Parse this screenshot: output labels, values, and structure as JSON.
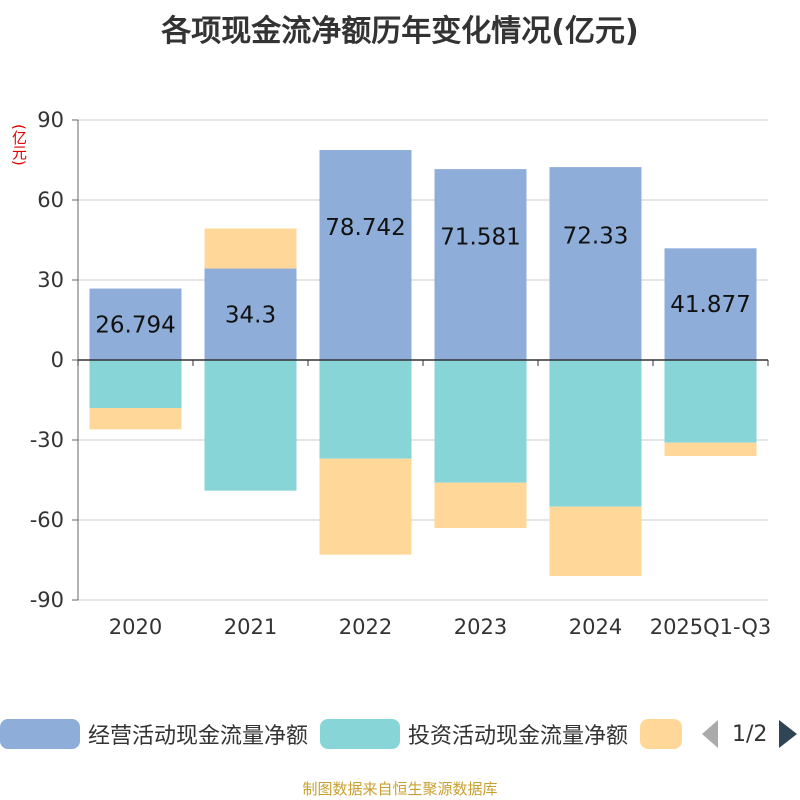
{
  "title": "各项现金流净额历年变化情况(亿元)",
  "unit_label": "(亿元)",
  "source_note": "制图数据来自恒生聚源数据库",
  "legend_page": "1/2",
  "chart_data": {
    "type": "bar",
    "stacked": true,
    "title": "各项现金流净额历年变化情况(亿元)",
    "ylabel": "(亿元)",
    "ylim": [
      -90,
      90
    ],
    "yticks": [
      90,
      60,
      30,
      0,
      -30,
      -60,
      -90
    ],
    "grid": true,
    "legend_position": "bottom",
    "categories": [
      "2020",
      "2021",
      "2022",
      "2023",
      "2024",
      "2025Q1-Q3"
    ],
    "series": [
      {
        "name": "经营活动现金流量净额",
        "color": "#8eadd9",
        "values": [
          26.794,
          34.3,
          78.742,
          71.581,
          72.33,
          41.877
        ],
        "labels": [
          "26.794",
          "34.3",
          "78.742",
          "71.581",
          "72.33",
          "41.877"
        ]
      },
      {
        "name": "投资活动现金流量净额",
        "color": "#87d5d6",
        "values": [
          -18,
          -49,
          -37,
          -46,
          -55,
          -31
        ]
      },
      {
        "name": "",
        "color": "#ffd899",
        "values": [
          -8,
          15,
          -36,
          -17,
          -26,
          -5
        ]
      }
    ]
  }
}
